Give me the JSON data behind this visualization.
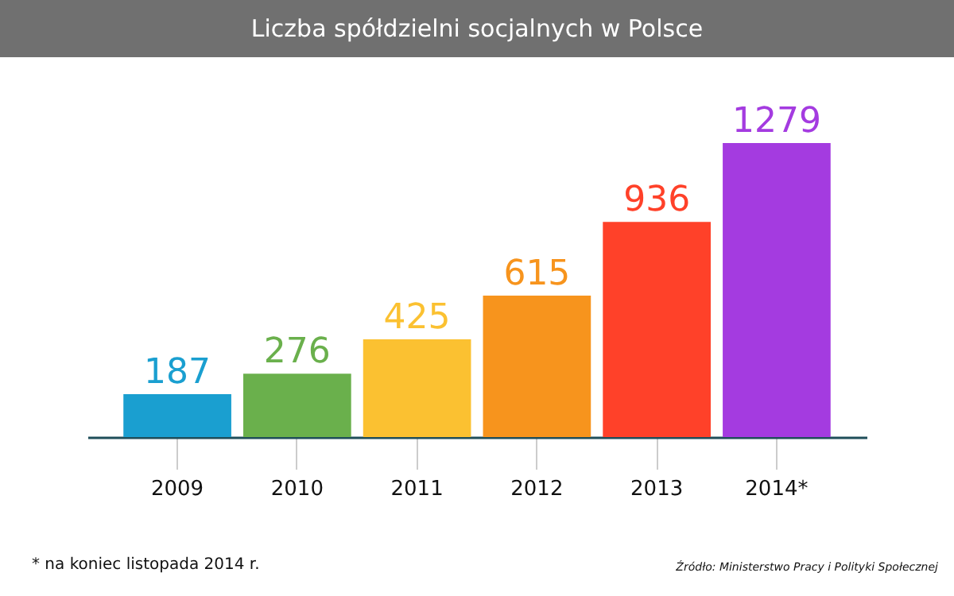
{
  "chart_data": {
    "type": "bar",
    "title": "Liczba spółdzielni socjalnych w Polsce",
    "categories": [
      "2009",
      "2010",
      "2011",
      "2012",
      "2013",
      "2014*"
    ],
    "values": [
      187,
      276,
      425,
      615,
      936,
      1279
    ],
    "colors": [
      "#1a9fd0",
      "#6ab04c",
      "#fbc131",
      "#f7941d",
      "#ff4129",
      "#a43be0"
    ],
    "data_labels": true,
    "annotations": [
      "* na koniec listopada 2014 r.",
      "Źródło: Ministerstwo Pracy i Polityki Społecznej"
    ]
  }
}
